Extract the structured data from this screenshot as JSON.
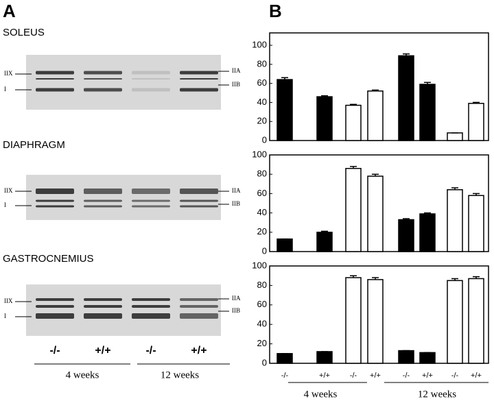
{
  "panel_a": {
    "label": "A",
    "gels": [
      {
        "title": "SOLEUS",
        "left_bands": [
          "IIX",
          "I"
        ],
        "right_bands": [
          "IIA",
          "IIB"
        ]
      },
      {
        "title": "DIAPHRAGM",
        "left_bands": [
          "IIX",
          "I"
        ],
        "right_bands": [
          "IIA",
          "IIB"
        ]
      },
      {
        "title": "GASTROCNEMIUS",
        "left_bands": [
          "IIX",
          "I"
        ],
        "right_bands": [
          "IIA",
          "IIB"
        ]
      }
    ],
    "lanes": [
      "-/-",
      "+/+",
      "-/-",
      "+/+"
    ],
    "groups": [
      "4 weeks",
      "12 weeks"
    ]
  },
  "panel_b_label": "B",
  "chart_data": [
    {
      "type": "bar",
      "categories": [
        null,
        null,
        null,
        null,
        null,
        null,
        null,
        null
      ],
      "values": [
        64,
        46,
        37,
        52,
        89,
        59,
        8,
        39
      ],
      "errors": [
        2,
        1,
        1,
        1,
        2,
        2,
        0,
        1
      ],
      "colors": [
        "#000000",
        "#000000",
        "#ffffff",
        "#ffffff",
        "#000000",
        "#000000",
        "#ffffff",
        "#ffffff"
      ],
      "ylim": [
        0,
        113
      ],
      "yticks": [
        0,
        20,
        40,
        60,
        80,
        100
      ]
    },
    {
      "type": "bar",
      "categories": [
        null,
        null,
        null,
        null,
        null,
        null,
        null,
        null
      ],
      "values": [
        13,
        20,
        86,
        78,
        33,
        39,
        64,
        58
      ],
      "errors": [
        0,
        1,
        2,
        2,
        1,
        1,
        2,
        2
      ],
      "colors": [
        "#000000",
        "#000000",
        "#ffffff",
        "#ffffff",
        "#000000",
        "#000000",
        "#ffffff",
        "#ffffff"
      ],
      "ylim": [
        0,
        100
      ],
      "yticks": [
        0,
        20,
        40,
        60,
        80,
        100
      ]
    },
    {
      "type": "bar",
      "categories": [
        "-/-",
        "+/+",
        "-/-",
        "+/+",
        "-/-",
        "+/+",
        "-/-",
        "+/+"
      ],
      "values": [
        10,
        12,
        88,
        86,
        13,
        11,
        85,
        87
      ],
      "errors": [
        0,
        0,
        2,
        2,
        0,
        0,
        2,
        2
      ],
      "colors": [
        "#000000",
        "#000000",
        "#ffffff",
        "#ffffff",
        "#000000",
        "#000000",
        "#ffffff",
        "#ffffff"
      ],
      "ylim": [
        0,
        100
      ],
      "yticks": [
        0,
        20,
        40,
        60,
        80,
        100
      ],
      "group_labels": [
        "4 weeks",
        "12 weeks"
      ]
    }
  ]
}
